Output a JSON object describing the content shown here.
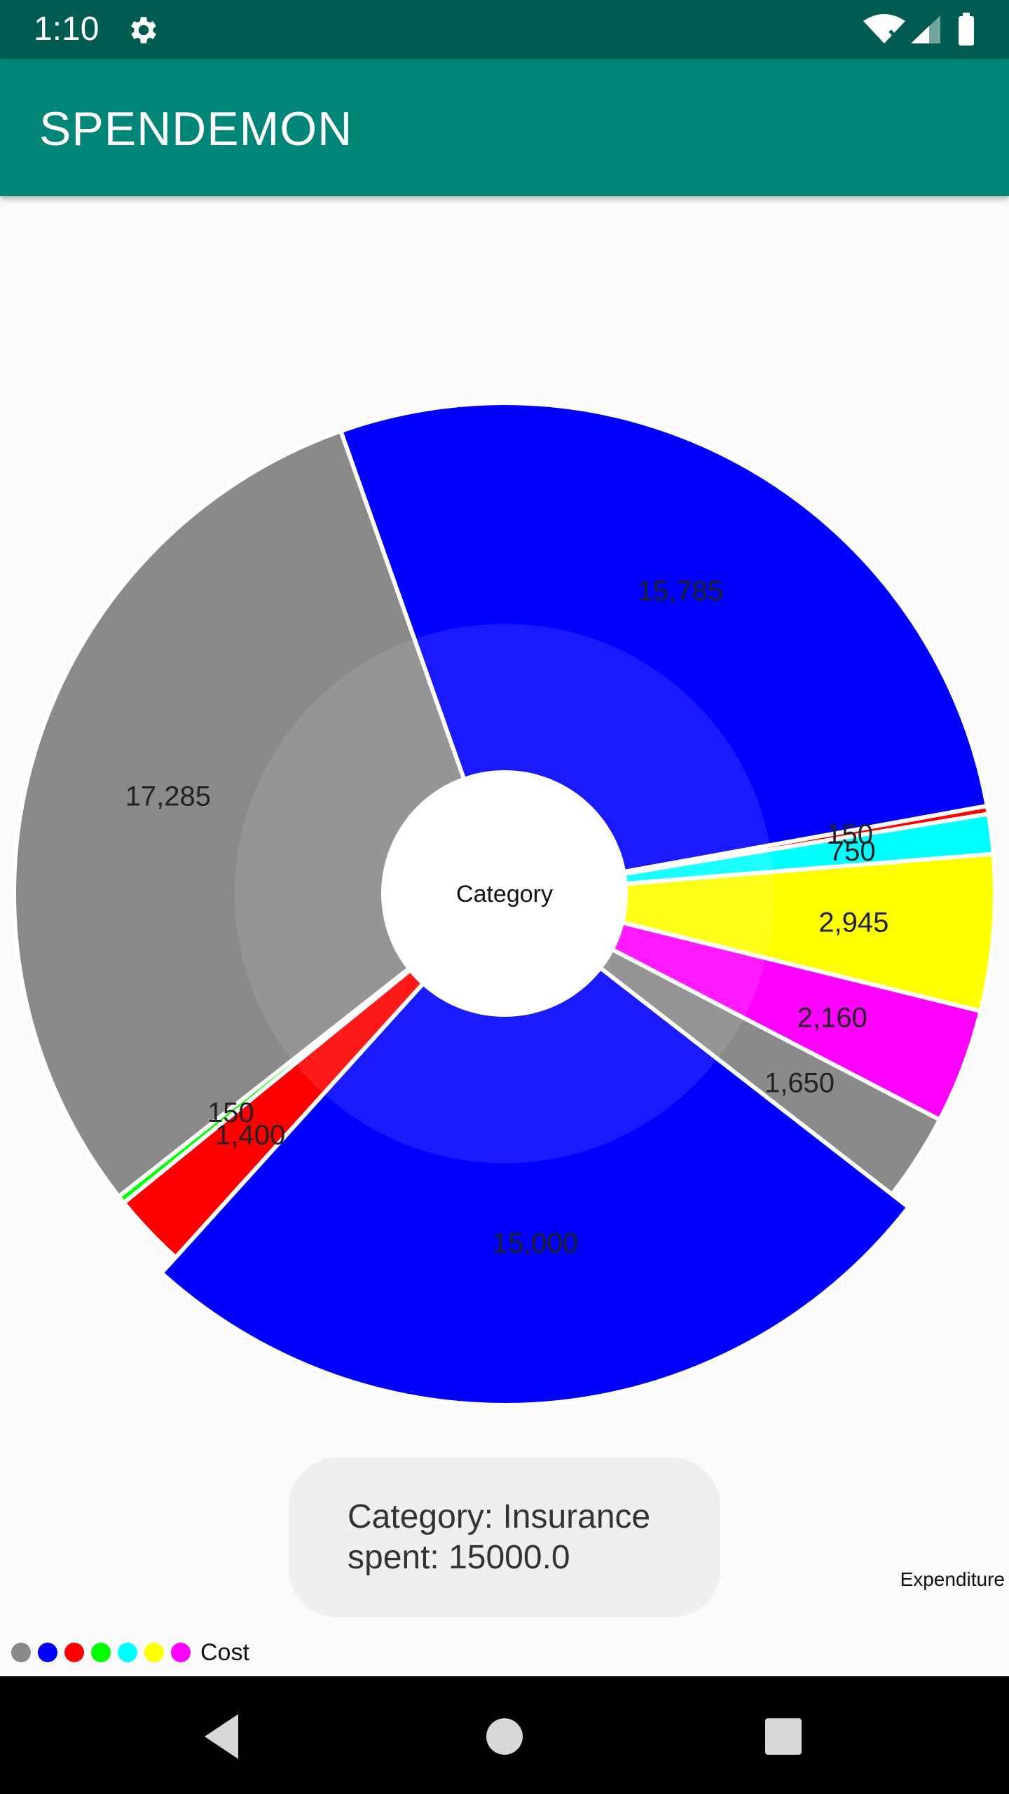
{
  "status_bar": {
    "time": "1:10",
    "icons": [
      "gear-icon",
      "wifi-icon",
      "signal-icon",
      "battery-icon"
    ]
  },
  "app_bar": {
    "title": "SPENDEMON"
  },
  "chart_data": {
    "type": "pie",
    "center_text": "Category",
    "description": "Expenditure",
    "legend": {
      "label": "Cost",
      "colors": [
        "#8a8a8a",
        "#0000ff",
        "#ff0000",
        "#00ff00",
        "#00ffff",
        "#ffff00",
        "#ff00ff"
      ]
    },
    "slices": [
      {
        "value": 15785,
        "label": "15,785",
        "color": "#0000ff"
      },
      {
        "value": 150,
        "label": "150",
        "color": "#ff0000"
      },
      {
        "value": 750,
        "label": "750",
        "color": "#00ffff"
      },
      {
        "value": 2945,
        "label": "2,945",
        "color": "#ffff00"
      },
      {
        "value": 2160,
        "label": "2,160",
        "color": "#ff00ff"
      },
      {
        "value": 1650,
        "label": "1,650",
        "color": "#8a8a8a"
      },
      {
        "value": 15000,
        "label": "15,000",
        "color": "#0000ff",
        "highlighted": true
      },
      {
        "value": 1400,
        "label": "1,400",
        "color": "#ff0000"
      },
      {
        "value": 150,
        "label": "150",
        "color": "#00ff00"
      },
      {
        "value": 17285,
        "label": "17,285",
        "color": "#8a8a8a"
      }
    ]
  },
  "toast": {
    "line1": "Category: Insurance",
    "line2": "spent: 15000.0"
  },
  "nav_bar": {
    "icons": [
      "back-icon",
      "home-icon",
      "recents-icon"
    ]
  }
}
